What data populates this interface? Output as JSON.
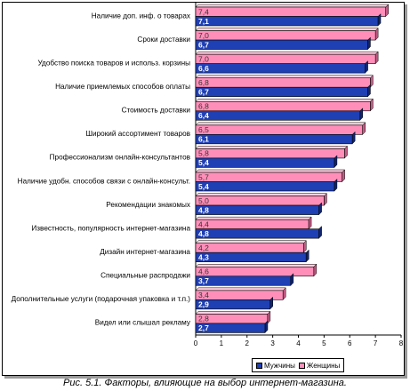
{
  "chart_data": {
    "type": "bar",
    "orientation": "horizontal",
    "caption": "Рис. 5.1. Факторы, влияющие на выбор интернет-магазина.",
    "categories": [
      "Наличие доп. инф. о товарах",
      "Сроки доставки",
      "Удобство поиска товаров и использ. корзины",
      "Наличие приемлемых способов оплаты",
      "Стоимость доставки",
      "Широкий ассортимент товаров",
      "Профессионализм онлайн-консультантов",
      "Наличие удобн. способов связи с онлайн-консульт.",
      "Рекомендации знакомых",
      "Известность, популярность интернет-магазина",
      "Дизайн интернет-магазина",
      "Специальные распродажи",
      "Дополнительные услуги (подарочная упаковка и т.п.)",
      "Видел или слышал рекламу"
    ],
    "series": [
      {
        "name": "Мужчины",
        "color": "#1f3fb4",
        "values": [
          7.1,
          6.7,
          6.6,
          6.7,
          6.4,
          6.1,
          5.4,
          5.4,
          4.8,
          4.8,
          4.3,
          3.7,
          2.9,
          2.7
        ],
        "labels": [
          "7,1",
          "6,7",
          "6,6",
          "6,7",
          "6,4",
          "6,1",
          "5,4",
          "5,4",
          "4,8",
          "4,8",
          "4,3",
          "3,7",
          "2,9",
          "2,7"
        ]
      },
      {
        "name": "Женщины",
        "color": "#ff8fb9",
        "values": [
          7.4,
          7.0,
          7.0,
          6.8,
          6.8,
          6.5,
          5.8,
          5.7,
          5.0,
          4.4,
          4.2,
          4.6,
          3.4,
          2.8
        ],
        "labels": [
          "7,4",
          "7,0",
          "7,0",
          "6,8",
          "6,8",
          "6,5",
          "5,8",
          "5,7",
          "5,0",
          "4,4",
          "4,2",
          "4,6",
          "3,4",
          "2,8"
        ]
      }
    ],
    "xlim": [
      0,
      8
    ],
    "xticks": [
      "0",
      "1",
      "2",
      "3",
      "4",
      "5",
      "6",
      "7",
      "8"
    ],
    "grid": false,
    "legend_position": "bottom-right"
  }
}
